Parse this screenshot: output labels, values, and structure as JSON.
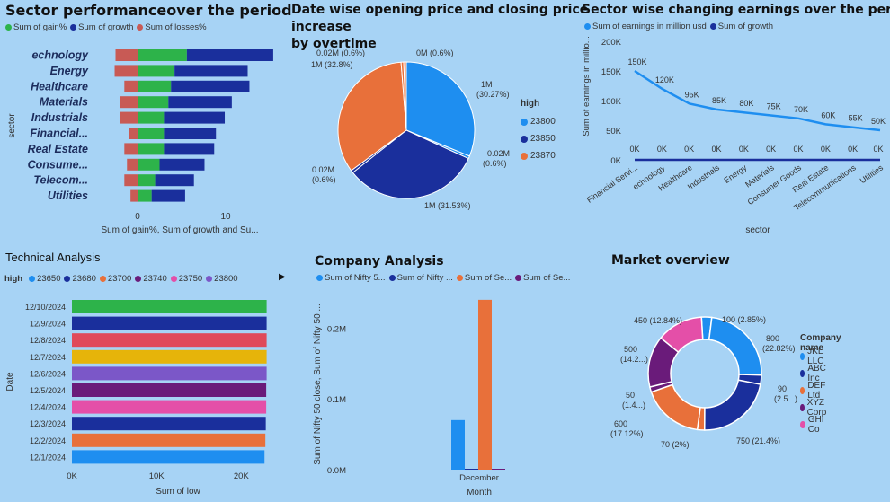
{
  "sector_performance": {
    "title": "Sector performanceover the period",
    "legend": [
      {
        "label": "Sum of gain%",
        "color": "#2db34a"
      },
      {
        "label": "Sum of growth",
        "color": "#1a2f9c"
      },
      {
        "label": "Sum of losses%",
        "color": "#c85a55"
      }
    ],
    "ylabel": "sector",
    "xlabel": "Sum of gain%, Sum of growth and Su...",
    "xticks": [
      "0",
      "10"
    ]
  },
  "open_close": {
    "title_line1": "Date wise opening price and closing price",
    "title_line2": "increase",
    "title_line3": "by overtime",
    "legend_title": "high",
    "legend": [
      {
        "label": "23800",
        "color": "#1e8ef0"
      },
      {
        "label": "23850",
        "color": "#1a2f9c"
      },
      {
        "label": "23870",
        "color": "#e8703a"
      }
    ]
  },
  "earnings": {
    "title": "Sector wise changing earnings over the period",
    "legend": [
      {
        "label": "Sum of earnings in million usd",
        "color": "#1e8ef0"
      },
      {
        "label": "Sum of growth",
        "color": "#1a2f9c"
      }
    ],
    "ylabel": "Sum of earnings in millio...",
    "xlabel": "sector",
    "yticks": [
      "0K",
      "50K",
      "100K",
      "150K",
      "200K"
    ]
  },
  "technical": {
    "title": "Technical Analysis",
    "legend_title": "high",
    "legend": [
      {
        "label": "23650",
        "color": "#1e8ef0"
      },
      {
        "label": "23680",
        "color": "#1a2f9c"
      },
      {
        "label": "23700",
        "color": "#e8703a"
      },
      {
        "label": "23740",
        "color": "#6a1b7a"
      },
      {
        "label": "23750",
        "color": "#e44fa8"
      },
      {
        "label": "23800",
        "color": "#7b57c8"
      }
    ],
    "ylabel": "Date",
    "xlabel": "Sum of low",
    "xticks": [
      "0K",
      "10K",
      "20K"
    ]
  },
  "company": {
    "title": "Company Analysis",
    "legend": [
      {
        "label": "Sum of Nifty 5...",
        "color": "#1e8ef0"
      },
      {
        "label": "Sum of Nifty ...",
        "color": "#1a2f9c"
      },
      {
        "label": "Sum of Se...",
        "color": "#e8703a"
      },
      {
        "label": "Sum of Se...",
        "color": "#6a1b7a"
      }
    ],
    "ylabel": "Sum of Nifty 50 close, Sum of Nifty 50 ...",
    "xlabel": "Month",
    "yticks": [
      "0.0M",
      "0.1M",
      "0.2M"
    ]
  },
  "market": {
    "title": "Market overview",
    "legend_title": "Company name",
    "legend": [
      {
        "label": "JKL LLC",
        "color": "#1e8ef0"
      },
      {
        "label": "ABC Inc",
        "color": "#1a2f9c"
      },
      {
        "label": "DEF Ltd",
        "color": "#e8703a"
      },
      {
        "label": "XYZ Corp",
        "color": "#6a1b7a"
      },
      {
        "label": "GHI Co",
        "color": "#e44fa8"
      }
    ]
  },
  "chart_data": [
    {
      "type": "bar",
      "orientation": "horizontal",
      "stacked": true,
      "title": "Sector performanceover the period",
      "categories": [
        "echnology",
        "Energy",
        "Healthcare",
        "Materials",
        "Industrials",
        "Financial...",
        "Real Estate",
        "Consume...",
        "Telecom...",
        "Utilities"
      ],
      "series": [
        {
          "name": "Sum of losses%",
          "values": [
            2.5,
            2.6,
            1.5,
            2.0,
            2.0,
            1.0,
            1.5,
            1.2,
            1.5,
            0.8
          ]
        },
        {
          "name": "Sum of gain%",
          "values": [
            5.6,
            4.2,
            3.8,
            3.5,
            3.0,
            3.0,
            3.0,
            2.5,
            2.0,
            1.6
          ]
        },
        {
          "name": "Sum of growth",
          "values": [
            9.8,
            8.3,
            8.9,
            7.2,
            6.9,
            5.9,
            5.7,
            5.1,
            4.4,
            3.8
          ]
        }
      ],
      "xlabel": "Sum of gain%, Sum of growth and Su...",
      "ylabel": "sector",
      "xticks": [
        0,
        10
      ]
    },
    {
      "type": "pie",
      "title": "Date wise opening price and closing price increase by overtime",
      "legend_title": "high",
      "slices": [
        {
          "label": "1M (30.27%)",
          "value": 30.27,
          "series": "23800"
        },
        {
          "label": "0.02M (0.6%)",
          "value": 0.6,
          "series": "23800"
        },
        {
          "label": "1M (31.53%)",
          "value": 31.53,
          "series": "23850"
        },
        {
          "label": "0.02M (0.6%)",
          "value": 0.6,
          "series": "23850"
        },
        {
          "label": "1M (32.8%)",
          "value": 32.8,
          "series": "23870"
        },
        {
          "label": "0.02M (0.6%)",
          "value": 0.6,
          "series": "23870"
        },
        {
          "label": "0M (0.6%)",
          "value": 0.6,
          "series": "23870"
        }
      ]
    },
    {
      "type": "line",
      "title": "Sector wise changing earnings over the period",
      "categories": [
        "Financial Servi...",
        "echnology",
        "Healthcare",
        "Industrials",
        "Energy",
        "Materials",
        "Consumer Goods",
        "Real Estate",
        "Telecommunications",
        "Utilities"
      ],
      "series": [
        {
          "name": "Sum of earnings in million usd",
          "values": [
            150,
            120,
            95,
            85,
            80,
            75,
            70,
            60,
            55,
            50
          ],
          "labels": [
            "150K",
            "120K",
            "95K",
            "85K",
            "80K",
            "75K",
            "70K",
            "60K",
            "55K",
            "50K"
          ]
        },
        {
          "name": "Sum of growth",
          "values": [
            0,
            0,
            0,
            0,
            0,
            0,
            0,
            0,
            0,
            0
          ],
          "labels": [
            "0K",
            "0K",
            "0K",
            "0K",
            "0K",
            "0K",
            "0K",
            "0K",
            "0K",
            "0K"
          ]
        }
      ],
      "xlabel": "sector",
      "ylabel": "Sum of earnings in millio...",
      "ylim": [
        0,
        200
      ],
      "yunit": "K"
    },
    {
      "type": "bar",
      "orientation": "horizontal",
      "title": "Technical Analysis",
      "categories": [
        "12/10/2024",
        "12/9/2024",
        "12/8/2024",
        "12/7/2024",
        "12/6/2024",
        "12/5/2024",
        "12/4/2024",
        "12/3/2024",
        "12/2/2024",
        "12/1/2024"
      ],
      "values": [
        23000,
        23000,
        23000,
        23000,
        23000,
        22950,
        22950,
        22900,
        22850,
        22750
      ],
      "colors": [
        "#2db34a",
        "#1a2f9c",
        "#e04a5a",
        "#e6b40a",
        "#7b57c8",
        "#6a1b7a",
        "#e44fa8",
        "#1a2f9c",
        "#e8703a",
        "#1e8ef0"
      ],
      "xlabel": "Sum of low",
      "ylabel": "Date",
      "xlim": [
        0,
        24000
      ]
    },
    {
      "type": "bar",
      "title": "Company Analysis",
      "categories": [
        "December"
      ],
      "series": [
        {
          "name": "Sum of Nifty 5...",
          "values": [
            0.07
          ]
        },
        {
          "name": "Sum of Nifty ...",
          "values": [
            0.0
          ]
        },
        {
          "name": "Sum of Se...",
          "values": [
            0.24
          ]
        },
        {
          "name": "Sum of Se...",
          "values": [
            0.0
          ]
        }
      ],
      "xlabel": "Month",
      "ylabel": "Sum of Nifty 50 close, Sum of Nifty 50 ...",
      "ylim": [
        0,
        0.25
      ],
      "yunit": "M"
    },
    {
      "type": "pie",
      "donut": true,
      "title": "Market overview",
      "legend_title": "Company name",
      "slices": [
        {
          "label": "100 (2.85%)",
          "value": 2.85,
          "company": "JKL LLC"
        },
        {
          "label": "800 (22.82%)",
          "value": 22.82,
          "company": "JKL LLC"
        },
        {
          "label": "90 (2.5...)",
          "value": 2.57,
          "company": "ABC Inc"
        },
        {
          "label": "750 (21.4%)",
          "value": 21.4,
          "company": "ABC Inc"
        },
        {
          "label": "70 (2%)",
          "value": 2.0,
          "company": "DEF Ltd"
        },
        {
          "label": "600 (17.12%)",
          "value": 17.12,
          "company": "DEF Ltd"
        },
        {
          "label": "50 (1.4...)",
          "value": 1.43,
          "company": "XYZ Corp"
        },
        {
          "label": "500 (14.2...)",
          "value": 14.27,
          "company": "XYZ Corp"
        },
        {
          "label": "450 (12.84%)",
          "value": 12.84,
          "company": "GHI Co"
        }
      ]
    }
  ]
}
